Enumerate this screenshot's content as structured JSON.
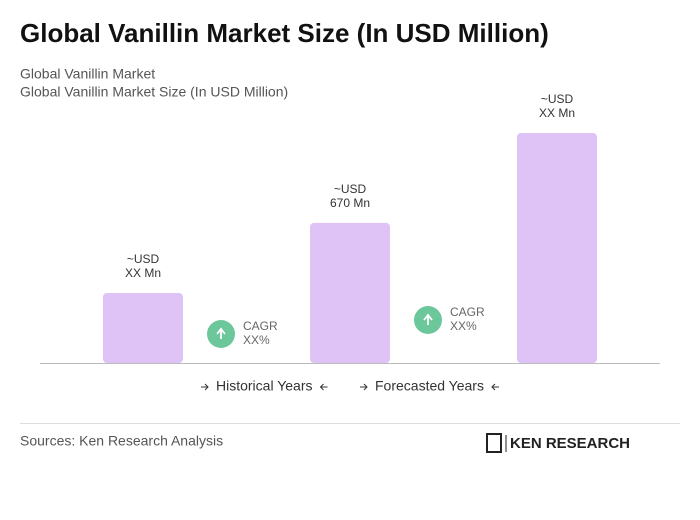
{
  "chart_data": {
    "type": "bar",
    "title": "Global Vanillin Market Size (In USD Million)",
    "subtitle": [
      "Global Vanillin Market",
      "Global Vanillin Market Size (In USD Million)"
    ],
    "categories": [
      null,
      null,
      null
    ],
    "values": [
      335,
      670,
      1100
    ],
    "value_labels": [
      [
        "~USD",
        "XX Mn"
      ],
      [
        "~USD",
        "670 Mn"
      ],
      [
        "~USD",
        "XX Mn"
      ]
    ],
    "color": "#dfc3f7",
    "annotations": [
      [
        "CAGR",
        "XX%"
      ],
      [
        "CAGR",
        "XX%"
      ]
    ],
    "legend": [
      "Historical Years",
      "Forecasted Years"
    ],
    "source": "Sources: Ken Research Analysis",
    "logo": "KEN RESEARCH"
  }
}
